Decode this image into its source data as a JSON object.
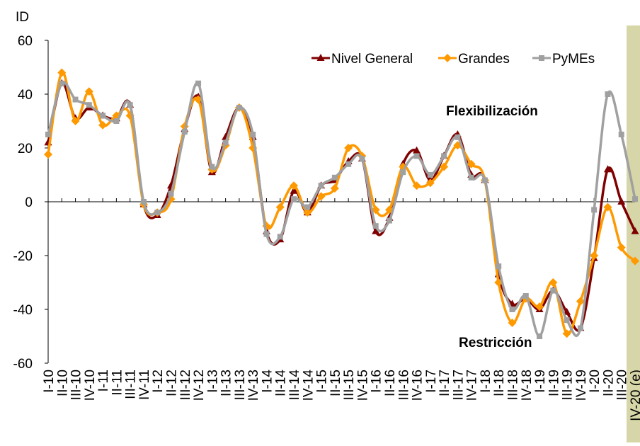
{
  "chart_data": {
    "type": "line",
    "y_label": "ID",
    "annotations": [
      "Flexibilización",
      "Restricción"
    ],
    "categories": [
      "I-10",
      "II-10",
      "III-10",
      "IV-10",
      "I-11",
      "II-11",
      "III-11",
      "IV-11",
      "I-12",
      "II-12",
      "III-12",
      "IV-12",
      "I-13",
      "II-13",
      "III-13",
      "IV-13",
      "I-14",
      "II-14",
      "III-14",
      "IV-14",
      "I-15",
      "II-15",
      "III-15",
      "IV-15",
      "I-16",
      "II-16",
      "III-16",
      "IV-16",
      "I-17",
      "II-17",
      "III-17",
      "IV-17",
      "I-18",
      "II-18",
      "III-18",
      "IV-18",
      "I-19",
      "II-19",
      "III-19",
      "IV-19",
      "I-20",
      "II-20",
      "III-20",
      "IV-20 (e)"
    ],
    "series": [
      {
        "name": "Nivel General",
        "color": "#7f0000",
        "marker": "triangle",
        "values": [
          22,
          44,
          31,
          35,
          32,
          31,
          36,
          -1,
          -5,
          6,
          27,
          39,
          11,
          24,
          35,
          24,
          -11,
          -14,
          4,
          -4,
          6,
          8,
          15,
          16,
          -11,
          -6,
          14,
          19,
          8,
          17,
          25,
          10,
          8,
          -27,
          -38,
          -36,
          -40,
          -33,
          -41,
          -47,
          -21,
          12,
          0,
          -11
        ]
      },
      {
        "name": "Grandes",
        "color": "#ff9900",
        "marker": "diamond",
        "values": [
          17.6,
          48,
          30,
          41,
          28.5,
          32,
          32,
          -1,
          -4,
          1,
          28,
          38,
          12,
          21,
          35,
          20,
          -9,
          -2,
          6,
          -4,
          2,
          5,
          20,
          17,
          -3,
          -3,
          13,
          6,
          7,
          13,
          21,
          14,
          8,
          -30,
          -45,
          -36,
          -39,
          -30,
          -49,
          -37,
          -20,
          -2,
          -17,
          -22
        ]
      },
      {
        "name": "PyMEs",
        "color": "#a0a0a0",
        "marker": "square",
        "values": [
          25,
          44,
          38,
          36,
          32,
          30,
          36,
          0,
          -4,
          3,
          26,
          44,
          13,
          22,
          35,
          25,
          -12,
          -13,
          1,
          -2,
          6,
          9,
          14,
          16,
          -9,
          -7,
          11,
          17,
          10,
          17,
          24,
          9,
          8,
          -24,
          -40,
          -35,
          -50,
          -33,
          -44,
          -47,
          -3,
          40,
          25,
          1
        ]
      }
    ],
    "ylim": [
      -60,
      60
    ],
    "yticks": [
      -60,
      -40,
      -20,
      0,
      20,
      40,
      60
    ]
  }
}
